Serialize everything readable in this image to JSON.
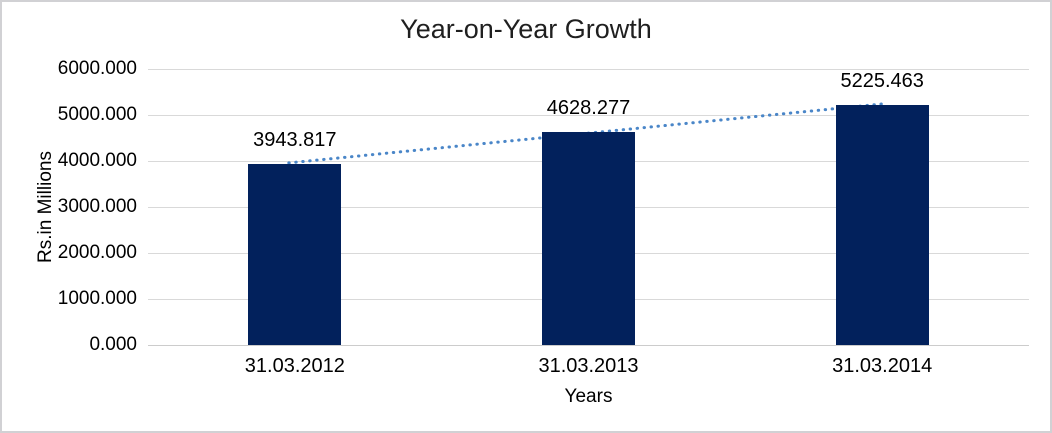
{
  "window": {
    "background": "#ffffff",
    "border_color": "#d1d1d4"
  },
  "chart_data": {
    "type": "bar",
    "title": "Year-on-Year Growth",
    "xlabel": "Years",
    "ylabel": "Rs.in Millions",
    "categories": [
      "31.03.2012",
      "31.03.2013",
      "31.03.2014"
    ],
    "values": [
      3943.817,
      4628.277,
      5225.463
    ],
    "data_labels": [
      "3943.817",
      "4628.277",
      "5225.463"
    ],
    "ylim": [
      0,
      6000
    ],
    "ytick_step": 1000,
    "yticks": [
      0,
      1000,
      2000,
      3000,
      4000,
      5000,
      6000
    ],
    "ytick_labels": [
      "0.000",
      "1000.000",
      "2000.000",
      "3000.000",
      "4000.000",
      "5000.000",
      "6000.000"
    ],
    "grid": true,
    "legend": "none",
    "colors": {
      "bar": "#02215c",
      "trendline": "#4a86c8",
      "gridline": "#d9d9d9",
      "axis_line": "#cccccc",
      "text": "#000000",
      "title_text": "#1f1f1f"
    },
    "trendline": {
      "type": "linear",
      "style": "dotted"
    }
  }
}
